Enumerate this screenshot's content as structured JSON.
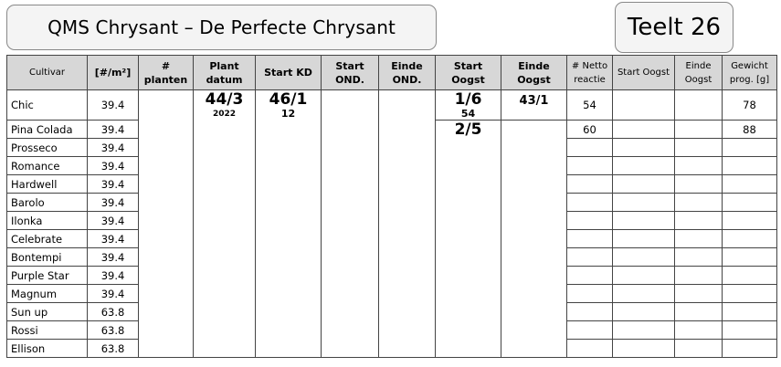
{
  "header": {
    "title": "QMS Chrysant – De Perfecte Chrysant",
    "teelt": "Teelt 26"
  },
  "columns": {
    "cultivar": "Cultivar",
    "density": "[#/m²]",
    "planten_1": "#",
    "planten_2": "planten",
    "plant_1": "Plant",
    "plant_2": "datum",
    "start_kd": "Start KD",
    "start_ond_1": "Start",
    "start_ond_2": "OND.",
    "einde_ond_1": "Einde",
    "einde_ond_2": "OND.",
    "start_oogst_1": "Start",
    "start_oogst_2": "Oogst",
    "einde_oogst_1": "Einde",
    "einde_oogst_2": "Oogst",
    "netto_1": "# Netto",
    "netto_2": "reactie",
    "start_oogst2": "Start Oogst",
    "einde_oogst2_1": "Einde",
    "einde_oogst2_2": "Oogst",
    "gewicht_1": "Gewicht",
    "gewicht_2": "prog. [g]"
  },
  "planting": {
    "plant_datum": "44/3",
    "plant_year": "2022",
    "start_kd": "46/1",
    "start_kd_sub": "12"
  },
  "rows": [
    {
      "cultivar": "Chic",
      "density": "39.4",
      "start_oogst": "1/6",
      "start_oogst_sub": "54",
      "einde_oogst": "43/1",
      "netto": "54",
      "gewicht": "78"
    },
    {
      "cultivar": "Pina Colada",
      "density": "39.4",
      "start_oogst": "2/5",
      "netto": "60",
      "gewicht": "88"
    },
    {
      "cultivar": "Prosseco",
      "density": "39.4"
    },
    {
      "cultivar": "Romance",
      "density": "39.4"
    },
    {
      "cultivar": "Hardwell",
      "density": "39.4"
    },
    {
      "cultivar": "Barolo",
      "density": "39.4"
    },
    {
      "cultivar": "Ilonka",
      "density": "39.4"
    },
    {
      "cultivar": "Celebrate",
      "density": "39.4"
    },
    {
      "cultivar": "Bontempi",
      "density": "39.4"
    },
    {
      "cultivar": "Purple Star",
      "density": "39.4"
    },
    {
      "cultivar": "Magnum",
      "density": "39.4"
    },
    {
      "cultivar": "Sun up",
      "density": "63.8"
    },
    {
      "cultivar": "Rossi",
      "density": "63.8"
    },
    {
      "cultivar": "Ellison",
      "density": "63.8"
    }
  ]
}
